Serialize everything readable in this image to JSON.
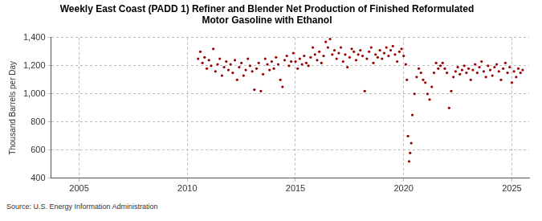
{
  "chart_data": {
    "type": "scatter",
    "title": [
      "Weekly East Coast (PADD 1) Refiner and Blender Net Production of Finished Reformulated",
      "Motor Gasoline with Ethanol"
    ],
    "y_label": "Thousand Barrels per Day",
    "annotations": [
      "Source: U.S. Energy Information Administration"
    ],
    "x": [
      2010.5,
      2010.6,
      2010.7,
      2010.8,
      2010.9,
      2011.0,
      2011.1,
      2011.2,
      2011.3,
      2011.4,
      2011.5,
      2011.6,
      2011.7,
      2011.8,
      2011.9,
      2012.0,
      2012.1,
      2012.2,
      2012.3,
      2012.4,
      2012.5,
      2012.6,
      2012.7,
      2012.8,
      2012.9,
      2013.0,
      2013.1,
      2013.2,
      2013.3,
      2013.4,
      2013.5,
      2013.6,
      2013.7,
      2013.8,
      2013.9,
      2014.0,
      2014.1,
      2014.2,
      2014.3,
      2014.4,
      2014.5,
      2014.6,
      2014.7,
      2014.8,
      2014.9,
      2015.0,
      2015.1,
      2015.2,
      2015.3,
      2015.4,
      2015.5,
      2015.6,
      2015.7,
      2015.8,
      2015.9,
      2016.0,
      2016.1,
      2016.2,
      2016.3,
      2016.4,
      2016.5,
      2016.6,
      2016.7,
      2016.8,
      2016.9,
      2017.0,
      2017.1,
      2017.2,
      2017.3,
      2017.4,
      2017.5,
      2017.6,
      2017.7,
      2017.8,
      2017.9,
      2018.0,
      2018.1,
      2018.2,
      2018.3,
      2018.4,
      2018.5,
      2018.6,
      2018.7,
      2018.8,
      2018.9,
      2019.0,
      2019.1,
      2019.2,
      2019.3,
      2019.4,
      2019.5,
      2019.6,
      2019.7,
      2019.8,
      2019.9,
      2020.0,
      2020.1,
      2020.15,
      2020.2,
      2020.25,
      2020.3,
      2020.35,
      2020.4,
      2020.5,
      2020.6,
      2020.7,
      2020.8,
      2020.9,
      2021.0,
      2021.1,
      2021.2,
      2021.3,
      2021.4,
      2021.5,
      2021.6,
      2021.7,
      2021.8,
      2021.9,
      2022.0,
      2022.1,
      2022.2,
      2022.3,
      2022.4,
      2022.5,
      2022.6,
      2022.7,
      2022.8,
      2022.9,
      2023.0,
      2023.1,
      2023.2,
      2023.3,
      2023.4,
      2023.5,
      2023.6,
      2023.7,
      2023.8,
      2023.9,
      2024.0,
      2024.1,
      2024.2,
      2024.3,
      2024.4,
      2024.5,
      2024.6,
      2024.7,
      2024.8,
      2024.9,
      2025.0,
      2025.1,
      2025.2,
      2025.3,
      2025.4,
      2025.5
    ],
    "values": [
      1250,
      1300,
      1220,
      1260,
      1180,
      1240,
      1200,
      1320,
      1160,
      1210,
      1250,
      1130,
      1190,
      1230,
      1170,
      1210,
      1150,
      1240,
      1100,
      1190,
      1220,
      1130,
      1170,
      1250,
      1200,
      1160,
      1030,
      1180,
      1220,
      1020,
      1140,
      1250,
      1210,
      1170,
      1230,
      1180,
      1260,
      1210,
      1100,
      1050,
      1240,
      1270,
      1200,
      1230,
      1290,
      1230,
      1180,
      1250,
      1210,
      1270,
      1220,
      1200,
      1260,
      1330,
      1280,
      1240,
      1300,
      1220,
      1270,
      1370,
      1330,
      1390,
      1280,
      1310,
      1250,
      1290,
      1330,
      1230,
      1280,
      1190,
      1260,
      1320,
      1300,
      1240,
      1280,
      1310,
      1270,
      1020,
      1250,
      1300,
      1330,
      1220,
      1280,
      1260,
      1310,
      1250,
      1290,
      1330,
      1270,
      1310,
      1340,
      1280,
      1230,
      1300,
      1320,
      1270,
      1210,
      1100,
      700,
      520,
      580,
      650,
      850,
      1000,
      1120,
      1180,
      1150,
      1100,
      1080,
      1000,
      960,
      1050,
      1150,
      1220,
      1180,
      1200,
      1220,
      1180,
      1150,
      900,
      1020,
      1120,
      1160,
      1190,
      1140,
      1170,
      1200,
      1150,
      1180,
      1100,
      1170,
      1210,
      1150,
      1190,
      1230,
      1160,
      1120,
      1200,
      1170,
      1130,
      1190,
      1210,
      1160,
      1100,
      1180,
      1220,
      1150,
      1190,
      1080,
      1160,
      1120,
      1180,
      1150,
      1170
    ],
    "color": "#990000",
    "marker": "circle",
    "xlim": [
      2003.7,
      2025.8
    ],
    "xticks": [
      2005,
      2010,
      2015,
      2020,
      2025
    ],
    "ylim": [
      400,
      1400
    ],
    "yticks": [
      {
        "value": 400,
        "label": "400"
      },
      {
        "value": 600,
        "label": "600"
      },
      {
        "value": 800,
        "label": "800"
      },
      {
        "value": 1000,
        "label": "1,000"
      },
      {
        "value": 1200,
        "label": "1,200"
      },
      {
        "value": 1400,
        "label": "1,400"
      }
    ],
    "grid": true
  }
}
